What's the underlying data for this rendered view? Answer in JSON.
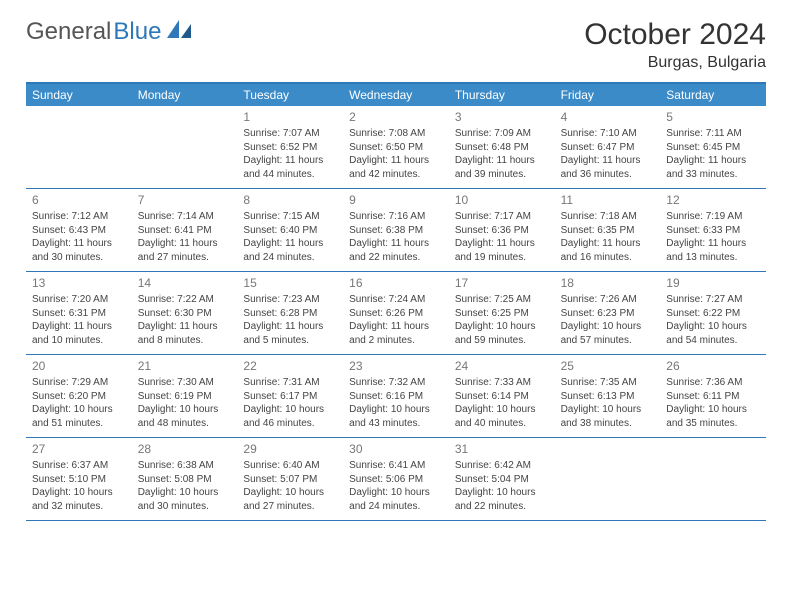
{
  "logo": {
    "word1": "General",
    "word2": "Blue"
  },
  "title": "October 2024",
  "subtitle": "Burgas, Bulgaria",
  "colors": {
    "header_bg": "#3b8bc9",
    "border": "#2e77b8",
    "title_text": "#333333",
    "body_text": "#444444",
    "daynum_text": "#777777",
    "background": "#ffffff"
  },
  "day_headers": [
    "Sunday",
    "Monday",
    "Tuesday",
    "Wednesday",
    "Thursday",
    "Friday",
    "Saturday"
  ],
  "weeks": [
    [
      null,
      null,
      {
        "n": "1",
        "sr": "Sunrise: 7:07 AM",
        "ss": "Sunset: 6:52 PM",
        "d1": "Daylight: 11 hours",
        "d2": "and 44 minutes."
      },
      {
        "n": "2",
        "sr": "Sunrise: 7:08 AM",
        "ss": "Sunset: 6:50 PM",
        "d1": "Daylight: 11 hours",
        "d2": "and 42 minutes."
      },
      {
        "n": "3",
        "sr": "Sunrise: 7:09 AM",
        "ss": "Sunset: 6:48 PM",
        "d1": "Daylight: 11 hours",
        "d2": "and 39 minutes."
      },
      {
        "n": "4",
        "sr": "Sunrise: 7:10 AM",
        "ss": "Sunset: 6:47 PM",
        "d1": "Daylight: 11 hours",
        "d2": "and 36 minutes."
      },
      {
        "n": "5",
        "sr": "Sunrise: 7:11 AM",
        "ss": "Sunset: 6:45 PM",
        "d1": "Daylight: 11 hours",
        "d2": "and 33 minutes."
      }
    ],
    [
      {
        "n": "6",
        "sr": "Sunrise: 7:12 AM",
        "ss": "Sunset: 6:43 PM",
        "d1": "Daylight: 11 hours",
        "d2": "and 30 minutes."
      },
      {
        "n": "7",
        "sr": "Sunrise: 7:14 AM",
        "ss": "Sunset: 6:41 PM",
        "d1": "Daylight: 11 hours",
        "d2": "and 27 minutes."
      },
      {
        "n": "8",
        "sr": "Sunrise: 7:15 AM",
        "ss": "Sunset: 6:40 PM",
        "d1": "Daylight: 11 hours",
        "d2": "and 24 minutes."
      },
      {
        "n": "9",
        "sr": "Sunrise: 7:16 AM",
        "ss": "Sunset: 6:38 PM",
        "d1": "Daylight: 11 hours",
        "d2": "and 22 minutes."
      },
      {
        "n": "10",
        "sr": "Sunrise: 7:17 AM",
        "ss": "Sunset: 6:36 PM",
        "d1": "Daylight: 11 hours",
        "d2": "and 19 minutes."
      },
      {
        "n": "11",
        "sr": "Sunrise: 7:18 AM",
        "ss": "Sunset: 6:35 PM",
        "d1": "Daylight: 11 hours",
        "d2": "and 16 minutes."
      },
      {
        "n": "12",
        "sr": "Sunrise: 7:19 AM",
        "ss": "Sunset: 6:33 PM",
        "d1": "Daylight: 11 hours",
        "d2": "and 13 minutes."
      }
    ],
    [
      {
        "n": "13",
        "sr": "Sunrise: 7:20 AM",
        "ss": "Sunset: 6:31 PM",
        "d1": "Daylight: 11 hours",
        "d2": "and 10 minutes."
      },
      {
        "n": "14",
        "sr": "Sunrise: 7:22 AM",
        "ss": "Sunset: 6:30 PM",
        "d1": "Daylight: 11 hours",
        "d2": "and 8 minutes."
      },
      {
        "n": "15",
        "sr": "Sunrise: 7:23 AM",
        "ss": "Sunset: 6:28 PM",
        "d1": "Daylight: 11 hours",
        "d2": "and 5 minutes."
      },
      {
        "n": "16",
        "sr": "Sunrise: 7:24 AM",
        "ss": "Sunset: 6:26 PM",
        "d1": "Daylight: 11 hours",
        "d2": "and 2 minutes."
      },
      {
        "n": "17",
        "sr": "Sunrise: 7:25 AM",
        "ss": "Sunset: 6:25 PM",
        "d1": "Daylight: 10 hours",
        "d2": "and 59 minutes."
      },
      {
        "n": "18",
        "sr": "Sunrise: 7:26 AM",
        "ss": "Sunset: 6:23 PM",
        "d1": "Daylight: 10 hours",
        "d2": "and 57 minutes."
      },
      {
        "n": "19",
        "sr": "Sunrise: 7:27 AM",
        "ss": "Sunset: 6:22 PM",
        "d1": "Daylight: 10 hours",
        "d2": "and 54 minutes."
      }
    ],
    [
      {
        "n": "20",
        "sr": "Sunrise: 7:29 AM",
        "ss": "Sunset: 6:20 PM",
        "d1": "Daylight: 10 hours",
        "d2": "and 51 minutes."
      },
      {
        "n": "21",
        "sr": "Sunrise: 7:30 AM",
        "ss": "Sunset: 6:19 PM",
        "d1": "Daylight: 10 hours",
        "d2": "and 48 minutes."
      },
      {
        "n": "22",
        "sr": "Sunrise: 7:31 AM",
        "ss": "Sunset: 6:17 PM",
        "d1": "Daylight: 10 hours",
        "d2": "and 46 minutes."
      },
      {
        "n": "23",
        "sr": "Sunrise: 7:32 AM",
        "ss": "Sunset: 6:16 PM",
        "d1": "Daylight: 10 hours",
        "d2": "and 43 minutes."
      },
      {
        "n": "24",
        "sr": "Sunrise: 7:33 AM",
        "ss": "Sunset: 6:14 PM",
        "d1": "Daylight: 10 hours",
        "d2": "and 40 minutes."
      },
      {
        "n": "25",
        "sr": "Sunrise: 7:35 AM",
        "ss": "Sunset: 6:13 PM",
        "d1": "Daylight: 10 hours",
        "d2": "and 38 minutes."
      },
      {
        "n": "26",
        "sr": "Sunrise: 7:36 AM",
        "ss": "Sunset: 6:11 PM",
        "d1": "Daylight: 10 hours",
        "d2": "and 35 minutes."
      }
    ],
    [
      {
        "n": "27",
        "sr": "Sunrise: 6:37 AM",
        "ss": "Sunset: 5:10 PM",
        "d1": "Daylight: 10 hours",
        "d2": "and 32 minutes."
      },
      {
        "n": "28",
        "sr": "Sunrise: 6:38 AM",
        "ss": "Sunset: 5:08 PM",
        "d1": "Daylight: 10 hours",
        "d2": "and 30 minutes."
      },
      {
        "n": "29",
        "sr": "Sunrise: 6:40 AM",
        "ss": "Sunset: 5:07 PM",
        "d1": "Daylight: 10 hours",
        "d2": "and 27 minutes."
      },
      {
        "n": "30",
        "sr": "Sunrise: 6:41 AM",
        "ss": "Sunset: 5:06 PM",
        "d1": "Daylight: 10 hours",
        "d2": "and 24 minutes."
      },
      {
        "n": "31",
        "sr": "Sunrise: 6:42 AM",
        "ss": "Sunset: 5:04 PM",
        "d1": "Daylight: 10 hours",
        "d2": "and 22 minutes."
      },
      null,
      null
    ]
  ]
}
